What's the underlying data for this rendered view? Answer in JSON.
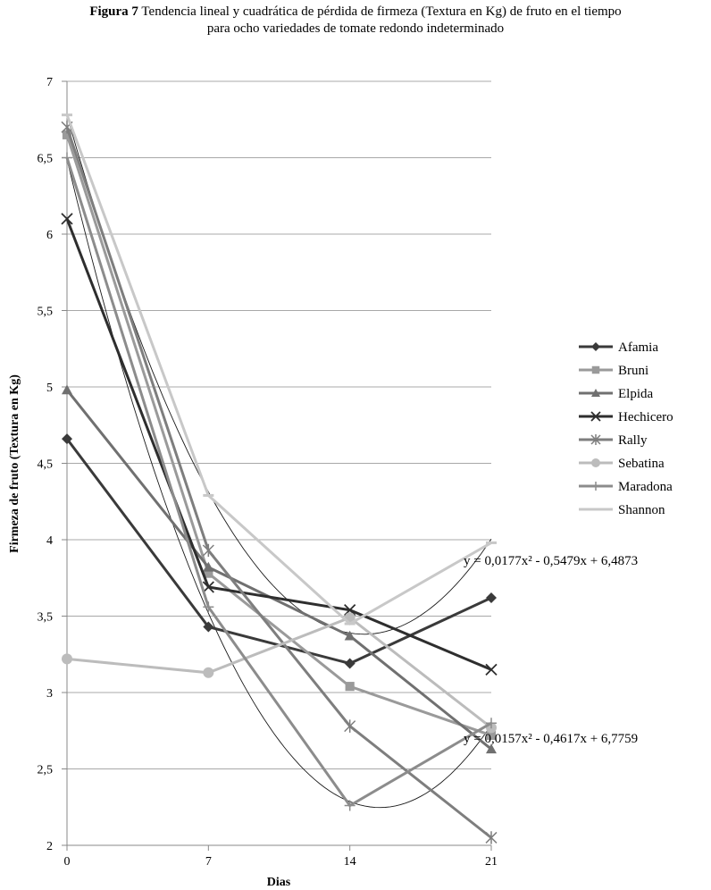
{
  "figure": {
    "label": "Figura 7",
    "title_line1": "Tendencia lineal y cuadrática de pérdida de firmeza (Textura en Kg) de fruto en el tiempo",
    "title_line2": "para ocho variedades de tomate redondo indeterminado"
  },
  "chart_data": {
    "type": "line",
    "xlabel": "Dias",
    "ylabel": "Firmeza de fruto (Textura en Kg)",
    "x": [
      0,
      7,
      14,
      21
    ],
    "x_tick_labels": [
      "0",
      "7",
      "14",
      "21"
    ],
    "ylim": [
      2,
      7
    ],
    "y_tick_labels": [
      "2",
      "2,5",
      "3",
      "3,5",
      "4",
      "4,5",
      "5",
      "5,5",
      "6",
      "6,5",
      "7"
    ],
    "grid": true,
    "legend_position": "right",
    "series": [
      {
        "name": "Afamia",
        "values": [
          4.66,
          3.43,
          3.19,
          3.62
        ],
        "color": "#3a3a3a",
        "marker": "diamond"
      },
      {
        "name": "Bruni",
        "values": [
          6.65,
          3.78,
          3.04,
          2.72
        ],
        "color": "#9a9a9a",
        "marker": "square"
      },
      {
        "name": "Elpida",
        "values": [
          4.98,
          3.82,
          3.37,
          2.63
        ],
        "color": "#707070",
        "marker": "triangle"
      },
      {
        "name": "Hechicero",
        "values": [
          6.1,
          3.69,
          3.54,
          3.15
        ],
        "color": "#2e2e2e",
        "marker": "x"
      },
      {
        "name": "Rally",
        "values": [
          6.7,
          3.93,
          2.78,
          2.05
        ],
        "color": "#7e7e7e",
        "marker": "star"
      },
      {
        "name": "Sebatina",
        "values": [
          3.22,
          3.13,
          3.49,
          2.77
        ],
        "color": "#bcbcbc",
        "marker": "circle"
      },
      {
        "name": "Maradona",
        "values": [
          6.5,
          3.56,
          2.26,
          2.8
        ],
        "color": "#8c8c8c",
        "marker": "plus"
      },
      {
        "name": "Shannon",
        "values": [
          6.78,
          4.29,
          3.45,
          3.98
        ],
        "color": "#c8c8c8",
        "marker": "dash"
      }
    ],
    "trendlines": [
      {
        "equation": "y = 0,0177x² - 0,5479x + 6,4873",
        "a": 0.0177,
        "b": -0.5479,
        "c": 6.4873
      },
      {
        "equation": "y = 0,0157x² - 0,4617x + 6,7759",
        "a": 0.0157,
        "b": -0.4617,
        "c": 6.7759
      }
    ]
  }
}
